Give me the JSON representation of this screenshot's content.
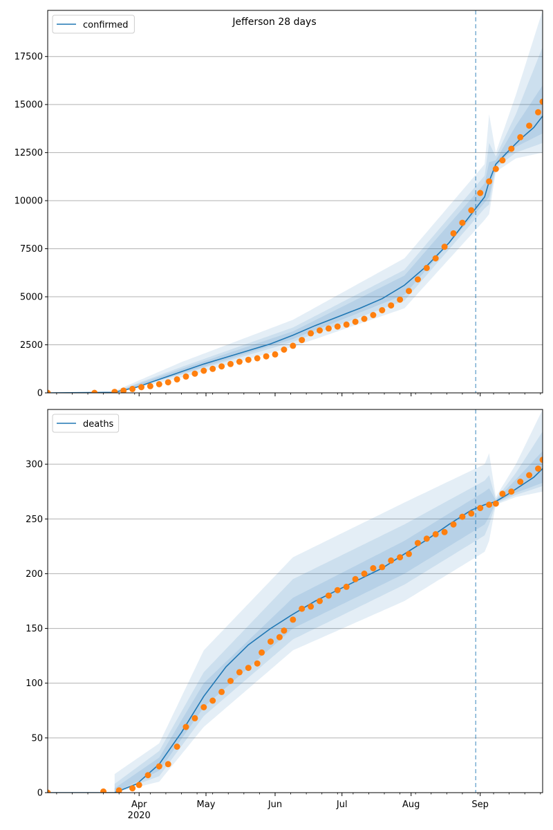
{
  "title": "Jefferson 28 days",
  "colors": {
    "model": "#1f77b4",
    "observed": "#ff7f0e",
    "band": "#1f77b4",
    "grid": "#b0b0b0",
    "forecast_line": "#1f77b4"
  },
  "x_axis": {
    "month_labels": [
      "Apr",
      "May",
      "Jun",
      "Jul",
      "Aug",
      "Sep"
    ],
    "month_days": [
      31,
      61,
      92,
      122,
      153,
      184
    ],
    "year_label": "2020",
    "day_range": [
      -10,
      212
    ],
    "forecast_day": 182
  },
  "chart_data": [
    {
      "type": "line",
      "title": "Jefferson 28 days",
      "legend": "confirmed",
      "legend_position": "top-left",
      "grid": "y",
      "ylim": [
        0,
        19900
      ],
      "yticks": [
        0,
        2500,
        5000,
        7500,
        10000,
        12500,
        15000,
        17500
      ],
      "xlim_days": [
        -10,
        212
      ],
      "observed_points": [
        [
          -10,
          0
        ],
        [
          11,
          0
        ],
        [
          20,
          50
        ],
        [
          24,
          120
        ],
        [
          28,
          200
        ],
        [
          32,
          300
        ],
        [
          36,
          350
        ],
        [
          40,
          450
        ],
        [
          44,
          550
        ],
        [
          48,
          700
        ],
        [
          52,
          850
        ],
        [
          56,
          1000
        ],
        [
          60,
          1150
        ],
        [
          64,
          1250
        ],
        [
          68,
          1380
        ],
        [
          72,
          1500
        ],
        [
          76,
          1620
        ],
        [
          80,
          1720
        ],
        [
          84,
          1800
        ],
        [
          88,
          1900
        ],
        [
          92,
          2000
        ],
        [
          96,
          2250
        ],
        [
          100,
          2450
        ],
        [
          104,
          2750
        ],
        [
          108,
          3100
        ],
        [
          112,
          3250
        ],
        [
          116,
          3350
        ],
        [
          120,
          3450
        ],
        [
          124,
          3550
        ],
        [
          128,
          3700
        ],
        [
          132,
          3850
        ],
        [
          136,
          4050
        ],
        [
          140,
          4300
        ],
        [
          144,
          4550
        ],
        [
          148,
          4850
        ],
        [
          152,
          5300
        ],
        [
          156,
          5900
        ],
        [
          160,
          6500
        ],
        [
          164,
          7000
        ],
        [
          168,
          7600
        ],
        [
          172,
          8300
        ],
        [
          176,
          8850
        ],
        [
          180,
          9500
        ],
        [
          184,
          10400
        ],
        [
          188,
          11000
        ],
        [
          191,
          11650
        ],
        [
          194,
          12100
        ],
        [
          198,
          12700
        ],
        [
          202,
          13300
        ],
        [
          206,
          13900
        ],
        [
          210,
          14600
        ],
        [
          212,
          15150
        ]
      ],
      "model_points": [
        [
          -10,
          0
        ],
        [
          20,
          30
        ],
        [
          30,
          300
        ],
        [
          40,
          700
        ],
        [
          50,
          1100
        ],
        [
          60,
          1500
        ],
        [
          70,
          1850
        ],
        [
          80,
          2200
        ],
        [
          90,
          2550
        ],
        [
          100,
          3000
        ],
        [
          110,
          3500
        ],
        [
          120,
          3950
        ],
        [
          130,
          4400
        ],
        [
          140,
          4900
        ],
        [
          150,
          5600
        ],
        [
          160,
          6600
        ],
        [
          170,
          7800
        ],
        [
          180,
          9300
        ],
        [
          186,
          10200
        ],
        [
          188,
          11000
        ],
        [
          191,
          11900
        ],
        [
          196,
          12500
        ],
        [
          202,
          13200
        ],
        [
          208,
          13800
        ],
        [
          212,
          14400
        ]
      ],
      "bands": {
        "outer": {
          "lower": [
            [
              20,
              0
            ],
            [
              50,
              800
            ],
            [
              100,
              2400
            ],
            [
              150,
              4400
            ],
            [
              186,
              9000
            ],
            [
              188,
              9300
            ],
            [
              191,
              11500
            ],
            [
              200,
              12200
            ],
            [
              212,
              12500
            ]
          ],
          "upper": [
            [
              20,
              100
            ],
            [
              50,
              1600
            ],
            [
              100,
              3800
            ],
            [
              150,
              7000
            ],
            [
              186,
              11900
            ],
            [
              188,
              14500
            ],
            [
              191,
              12500
            ],
            [
              200,
              15500
            ],
            [
              212,
              19900
            ]
          ]
        },
        "middle": {
          "lower": [
            [
              20,
              20
            ],
            [
              50,
              950
            ],
            [
              100,
              2650
            ],
            [
              150,
              4800
            ],
            [
              186,
              9600
            ],
            [
              188,
              9800
            ],
            [
              191,
              11700
            ],
            [
              200,
              12500
            ],
            [
              212,
              13000
            ]
          ],
          "upper": [
            [
              20,
              60
            ],
            [
              50,
              1350
            ],
            [
              100,
              3400
            ],
            [
              150,
              6400
            ],
            [
              186,
              11300
            ],
            [
              188,
              13000
            ],
            [
              191,
              12300
            ],
            [
              200,
              14500
            ],
            [
              212,
              18000
            ]
          ]
        },
        "inner": {
          "lower": [
            [
              20,
              25
            ],
            [
              50,
              1000
            ],
            [
              100,
              2800
            ],
            [
              150,
              5100
            ],
            [
              186,
              9900
            ],
            [
              188,
              10200
            ],
            [
              191,
              11800
            ],
            [
              200,
              12800
            ],
            [
              212,
              13500
            ]
          ],
          "upper": [
            [
              20,
              40
            ],
            [
              50,
              1250
            ],
            [
              100,
              3200
            ],
            [
              150,
              6100
            ],
            [
              186,
              10900
            ],
            [
              188,
              12000
            ],
            [
              191,
              12100
            ],
            [
              200,
              13900
            ],
            [
              212,
              16000
            ]
          ]
        }
      }
    },
    {
      "type": "line",
      "legend": "deaths",
      "legend_position": "top-left",
      "grid": "y",
      "ylim": [
        0,
        350
      ],
      "yticks": [
        0,
        50,
        100,
        150,
        200,
        250,
        300
      ],
      "xlim_days": [
        -10,
        212
      ],
      "observed_points": [
        [
          -10,
          0
        ],
        [
          15,
          1
        ],
        [
          22,
          2
        ],
        [
          28,
          4
        ],
        [
          31,
          7
        ],
        [
          35,
          16
        ],
        [
          40,
          24
        ],
        [
          44,
          26
        ],
        [
          48,
          42
        ],
        [
          52,
          60
        ],
        [
          56,
          68
        ],
        [
          60,
          78
        ],
        [
          64,
          84
        ],
        [
          68,
          92
        ],
        [
          72,
          102
        ],
        [
          76,
          110
        ],
        [
          80,
          114
        ],
        [
          84,
          118
        ],
        [
          86,
          128
        ],
        [
          90,
          138
        ],
        [
          94,
          142
        ],
        [
          96,
          148
        ],
        [
          100,
          158
        ],
        [
          104,
          168
        ],
        [
          108,
          170
        ],
        [
          112,
          175
        ],
        [
          116,
          180
        ],
        [
          120,
          185
        ],
        [
          124,
          188
        ],
        [
          128,
          195
        ],
        [
          132,
          200
        ],
        [
          136,
          205
        ],
        [
          140,
          206
        ],
        [
          144,
          212
        ],
        [
          148,
          215
        ],
        [
          152,
          218
        ],
        [
          156,
          228
        ],
        [
          160,
          232
        ],
        [
          164,
          236
        ],
        [
          168,
          238
        ],
        [
          172,
          245
        ],
        [
          176,
          252
        ],
        [
          180,
          255
        ],
        [
          184,
          260
        ],
        [
          188,
          263
        ],
        [
          191,
          264
        ],
        [
          194,
          273
        ],
        [
          198,
          275
        ],
        [
          202,
          284
        ],
        [
          206,
          290
        ],
        [
          210,
          296
        ],
        [
          212,
          304
        ]
      ],
      "model_points": [
        [
          -10,
          0
        ],
        [
          20,
          0
        ],
        [
          30,
          8
        ],
        [
          40,
          26
        ],
        [
          50,
          55
        ],
        [
          60,
          88
        ],
        [
          70,
          115
        ],
        [
          80,
          135
        ],
        [
          90,
          150
        ],
        [
          100,
          163
        ],
        [
          110,
          175
        ],
        [
          120,
          185
        ],
        [
          130,
          195
        ],
        [
          140,
          205
        ],
        [
          150,
          218
        ],
        [
          160,
          231
        ],
        [
          170,
          245
        ],
        [
          180,
          258
        ],
        [
          186,
          263
        ],
        [
          188,
          264
        ],
        [
          191,
          266
        ],
        [
          196,
          272
        ],
        [
          202,
          280
        ],
        [
          208,
          288
        ],
        [
          212,
          296
        ]
      ],
      "bands": {
        "outer": {
          "lower": [
            [
              20,
              0
            ],
            [
              40,
              10
            ],
            [
              60,
              60
            ],
            [
              100,
              130
            ],
            [
              150,
              175
            ],
            [
              186,
              220
            ],
            [
              188,
              230
            ],
            [
              191,
              263
            ],
            [
              200,
              270
            ],
            [
              212,
              275
            ]
          ],
          "upper": [
            [
              20,
              17
            ],
            [
              40,
              45
            ],
            [
              60,
              130
            ],
            [
              100,
              215
            ],
            [
              150,
              265
            ],
            [
              186,
              300
            ],
            [
              188,
              310
            ],
            [
              191,
              270
            ],
            [
              200,
              300
            ],
            [
              212,
              350
            ]
          ]
        },
        "middle": {
          "lower": [
            [
              20,
              0
            ],
            [
              40,
              15
            ],
            [
              60,
              70
            ],
            [
              100,
              140
            ],
            [
              150,
              190
            ],
            [
              186,
              235
            ],
            [
              188,
              245
            ],
            [
              191,
              264
            ],
            [
              200,
              272
            ],
            [
              212,
              280
            ]
          ],
          "upper": [
            [
              20,
              8
            ],
            [
              40,
              38
            ],
            [
              60,
              110
            ],
            [
              100,
              195
            ],
            [
              150,
              245
            ],
            [
              186,
              285
            ],
            [
              188,
              290
            ],
            [
              191,
              268
            ],
            [
              200,
              292
            ],
            [
              212,
              330
            ]
          ]
        },
        "inner": {
          "lower": [
            [
              20,
              0
            ],
            [
              40,
              20
            ],
            [
              60,
              78
            ],
            [
              100,
              150
            ],
            [
              150,
              200
            ],
            [
              186,
              245
            ],
            [
              188,
              252
            ],
            [
              191,
              265
            ],
            [
              200,
              274
            ],
            [
              212,
              283
            ]
          ],
          "upper": [
            [
              20,
              4
            ],
            [
              40,
              32
            ],
            [
              60,
              100
            ],
            [
              100,
              178
            ],
            [
              150,
              230
            ],
            [
              186,
              275
            ],
            [
              188,
              278
            ],
            [
              191,
              267
            ],
            [
              200,
              286
            ],
            [
              212,
              312
            ]
          ]
        }
      }
    }
  ]
}
